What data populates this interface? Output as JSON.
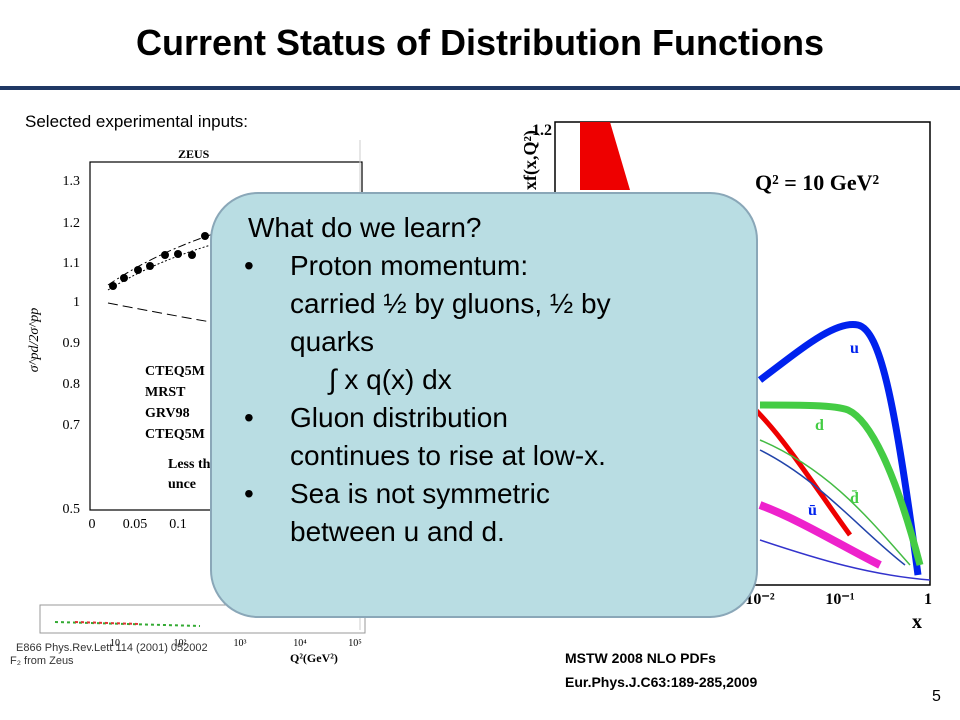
{
  "header": {
    "title": "Current Status of Distribution Functions"
  },
  "subtitle": "Selected experimental inputs:",
  "left_figure": {
    "label": "ZEUS",
    "y_axis_label": "σ^pd/2σ^pp",
    "yticks": [
      "1.3",
      "1.2",
      "1.1",
      "1",
      "0.9",
      "0.8",
      "0.7",
      "0.5"
    ],
    "xticks": [
      "0",
      "0.05",
      "0.1"
    ],
    "legend": [
      "CTEQ5M",
      "MRST",
      "GRV98",
      "CTEQ5M"
    ],
    "note": [
      "Less th",
      "unce"
    ],
    "inset_xticks": [
      "10",
      "10²",
      "10³",
      "10⁴",
      "10⁵"
    ],
    "inset_x_label": "Q²(GeV²)"
  },
  "right_figure": {
    "y_axis_label": "xf(x,Q²)",
    "ytick": "1.2",
    "scale_label": "Q² = 10 GeV²",
    "curve_labels": [
      "u",
      "d",
      "d̄",
      "ū"
    ],
    "xticks": [
      "10⁻²",
      "10⁻¹",
      "1"
    ],
    "x_label": "x"
  },
  "callout": {
    "heading": "What do we learn?",
    "items": [
      {
        "lines": [
          "Proton momentum:",
          "carried ½ by gluons, ½ by",
          "quarks",
          "     ∫ x q(x) dx"
        ]
      },
      {
        "lines": [
          "Gluon distribution",
          "continues to rise at low-x."
        ]
      },
      {
        "lines": [
          "Sea is not symmetric",
          "between u and d."
        ]
      }
    ],
    "bullet": "•"
  },
  "references": {
    "left": [
      "E866 Phys.Rev.Lett 114 (2001) 052002",
      "F₂ from Zeus"
    ],
    "right": [
      "MSTW 2008 NLO PDFs",
      "Eur.Phys.J.C63:189-285,2009"
    ]
  },
  "page_number": "5"
}
